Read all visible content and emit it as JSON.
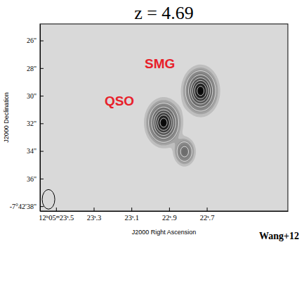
{
  "chart_data": {
    "type": "contour",
    "title": "z = 4.69",
    "x_label": "J2000 Right Ascension",
    "y_label": "J2000 Declination",
    "credit": "Wang+12",
    "color": "#e8202a",
    "grid": false,
    "xlim": [
      23.585,
      22.27
    ],
    "ylim": [
      24.8,
      38.35
    ],
    "xticks": [
      {
        "value": 23.5,
        "label": "12ʰ05ᵐ23ˢ.5"
      },
      {
        "value": 23.3,
        "label": "23ˢ.3"
      },
      {
        "value": 23.1,
        "label": "23ˢ.1"
      },
      {
        "value": 22.9,
        "label": "22ˢ.9"
      },
      {
        "value": 22.7,
        "label": "22ˢ.7"
      }
    ],
    "yticks": [
      {
        "value": 26,
        "label": "26\""
      },
      {
        "value": 28,
        "label": "28\""
      },
      {
        "value": 30,
        "label": "30\""
      },
      {
        "value": 32,
        "label": "32\""
      },
      {
        "value": 34,
        "label": "34\""
      },
      {
        "value": 36,
        "label": "36\""
      },
      {
        "value": 38,
        "label": "-7°42'38\""
      }
    ],
    "sources": [
      {
        "name": "QSO",
        "x": 22.933,
        "y": 31.9,
        "peak": 1.0,
        "sigma_x": 0.041,
        "sigma_y": 0.73
      },
      {
        "name": "SMG",
        "x": 22.737,
        "y": 29.6,
        "peak": 1.0,
        "sigma_x": 0.041,
        "sigma_y": 0.75
      },
      {
        "x": 22.822,
        "y": 34.0,
        "peak": 0.4,
        "sigma_x": 0.028,
        "sigma_y": 0.5
      }
    ],
    "contour_levels": [
      0.15,
      0.3,
      0.45,
      0.6,
      0.75,
      0.9
    ],
    "beam": {
      "x": 23.54,
      "y": 37.5,
      "width": 0.067,
      "height": 1.42
    }
  }
}
